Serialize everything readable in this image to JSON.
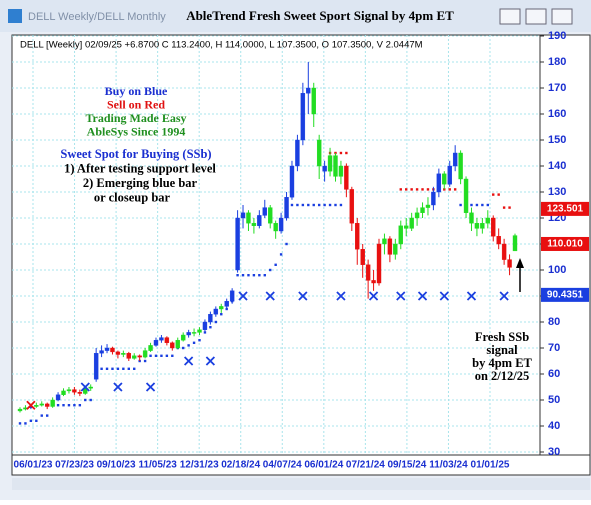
{
  "window": {
    "tab": "DELL Weekly/DELL Monthly",
    "title": "AbleTrend Fresh Sweet Sport Signal by 4pm ET"
  },
  "chart_data": {
    "type": "candlestick",
    "header": "DELL [Weekly] 02/09/25 +6.8700 C 113.2400, H 114.0000, L 107.3500, O 107.3500, V 2.0447M",
    "legend_lines": [
      {
        "text": "Buy on Blue",
        "color": "#1a2fd0"
      },
      {
        "text": "Sell on Red",
        "color": "#e01010"
      },
      {
        "text": "Trading Made Easy",
        "color": "#1f8f1f"
      },
      {
        "text": "AbleSys Since 1994",
        "color": "#1f8f1f"
      }
    ],
    "notes": [
      "Sweet Spot for Buying (SSb)",
      "1) After testing support level",
      "2) Emerging blue bar",
      "or closeup bar"
    ],
    "callout": [
      "Fresh SSb",
      "signal",
      "by 4pm ET",
      "on 2/12/25"
    ],
    "xlabels": [
      "06/01/23",
      "07/23/23",
      "09/10/23",
      "11/05/23",
      "12/31/23",
      "02/18/24",
      "04/07/24",
      "06/01/24",
      "07/21/24",
      "09/15/24",
      "11/03/24",
      "01/01/25"
    ],
    "ylim": [
      30,
      190
    ],
    "yticks": [
      30,
      40,
      50,
      60,
      70,
      80,
      90,
      100,
      110,
      120,
      130,
      140,
      150,
      160,
      170,
      180,
      190
    ],
    "grid": true,
    "palette": {
      "b": "#1a3fe0",
      "g": "#22dd22",
      "r": "#e81010"
    },
    "ohlc": [
      [
        45.8,
        47.2,
        45.2,
        46.5
      ],
      [
        46.5,
        48,
        46,
        47
      ],
      [
        47,
        48.5,
        46.5,
        47.5
      ],
      [
        47.5,
        49,
        47,
        48
      ],
      [
        48,
        49.5,
        47.5,
        48.5
      ],
      [
        48.5,
        49,
        46.5,
        47.5
      ],
      [
        47.5,
        51,
        47,
        50
      ],
      [
        50,
        53,
        49.5,
        52
      ],
      [
        52,
        54.5,
        51.5,
        53.5
      ],
      [
        53.5,
        55,
        52.5,
        54
      ],
      [
        54,
        55,
        52,
        53
      ],
      [
        53,
        54,
        51.5,
        52.5
      ],
      [
        52.5,
        55.5,
        52,
        54.5
      ],
      [
        54.5,
        56,
        53.5,
        55
      ],
      [
        58,
        70,
        57,
        68
      ],
      [
        68,
        71,
        66.5,
        69
      ],
      [
        69,
        71.5,
        68,
        70
      ],
      [
        70,
        70.5,
        67.5,
        68.5
      ],
      [
        68.5,
        69,
        66,
        67.5
      ],
      [
        67.5,
        69,
        66.5,
        68
      ],
      [
        68,
        68.5,
        65,
        66
      ],
      [
        66,
        68,
        65.5,
        67
      ],
      [
        67,
        67.5,
        65,
        66.5
      ],
      [
        66.5,
        70,
        66,
        69
      ],
      [
        69,
        72,
        68.5,
        71
      ],
      [
        71,
        74,
        70.5,
        73
      ],
      [
        73,
        75,
        72,
        74
      ],
      [
        74,
        74.5,
        71,
        72
      ],
      [
        72,
        72.5,
        69,
        70
      ],
      [
        70,
        74,
        69.5,
        73
      ],
      [
        73,
        76,
        72.5,
        75
      ],
      [
        75,
        77,
        74,
        76
      ],
      [
        76,
        77.5,
        74.5,
        76
      ],
      [
        76,
        78,
        75,
        77
      ],
      [
        77,
        81,
        76.5,
        80
      ],
      [
        80,
        84,
        79,
        83
      ],
      [
        83,
        86,
        82,
        85
      ],
      [
        85,
        87,
        83.5,
        86
      ],
      [
        86,
        89,
        85,
        88
      ],
      [
        88,
        93,
        87,
        92
      ],
      [
        100,
        123,
        99,
        120
      ],
      [
        120,
        125,
        116,
        122
      ],
      [
        122,
        123,
        115,
        118
      ],
      [
        118,
        120,
        114,
        117
      ],
      [
        117,
        123,
        116,
        121
      ],
      [
        121,
        127,
        120,
        124
      ],
      [
        124,
        125,
        116,
        118
      ],
      [
        118,
        119,
        112,
        115
      ],
      [
        115,
        122,
        114,
        120
      ],
      [
        120,
        130,
        119,
        128
      ],
      [
        128,
        142,
        127,
        140
      ],
      [
        140,
        152,
        138,
        150
      ],
      [
        150,
        172,
        148,
        168
      ],
      [
        168,
        180,
        160,
        170
      ],
      [
        170,
        172,
        155,
        160
      ],
      [
        150,
        152,
        135,
        140
      ],
      [
        140,
        142,
        134,
        138
      ],
      [
        138,
        147,
        136,
        144
      ],
      [
        144,
        145,
        134,
        136
      ],
      [
        136,
        142,
        133,
        140
      ],
      [
        140,
        141,
        128,
        131
      ],
      [
        131,
        132,
        115,
        118
      ],
      [
        118,
        120,
        102,
        108
      ],
      [
        108,
        110,
        97,
        102
      ],
      [
        102,
        104,
        89,
        96
      ],
      [
        96,
        100,
        92,
        95
      ],
      [
        95,
        112,
        94,
        110
      ],
      [
        110,
        114,
        106,
        112
      ],
      [
        112,
        113,
        103,
        106
      ],
      [
        106,
        112,
        104,
        110
      ],
      [
        110,
        119,
        108,
        117
      ],
      [
        117,
        120,
        113,
        116
      ],
      [
        116,
        122,
        115,
        120
      ],
      [
        120,
        124,
        117,
        122
      ],
      [
        122,
        126,
        120,
        124
      ],
      [
        124,
        128,
        121,
        125
      ],
      [
        125,
        132,
        123,
        130
      ],
      [
        130,
        139,
        128,
        137
      ],
      [
        137,
        138,
        131,
        133
      ],
      [
        133,
        142,
        132,
        140
      ],
      [
        140,
        148,
        138,
        145
      ],
      [
        145,
        146,
        133,
        135
      ],
      [
        135,
        136,
        120,
        122
      ],
      [
        122,
        124,
        115,
        118
      ],
      [
        118,
        120,
        113,
        116
      ],
      [
        116,
        120,
        114,
        118
      ],
      [
        118,
        123,
        116,
        120
      ],
      [
        120,
        121,
        111,
        113
      ],
      [
        113,
        116,
        108,
        110
      ],
      [
        110,
        112,
        102,
        104
      ],
      [
        104,
        106,
        98,
        101
      ],
      [
        107.35,
        114,
        107.35,
        113.24
      ]
    ],
    "bar_colors": [
      "g",
      "g",
      "b",
      "g",
      "g",
      "r",
      "g",
      "b",
      "g",
      "g",
      "r",
      "r",
      "g",
      "g",
      "b",
      "b",
      "b",
      "r",
      "r",
      "g",
      "r",
      "g",
      "r",
      "g",
      "g",
      "b",
      "b",
      "r",
      "r",
      "g",
      "g",
      "b",
      "g",
      "g",
      "b",
      "b",
      "b",
      "g",
      "b",
      "b",
      "b",
      "b",
      "g",
      "g",
      "b",
      "b",
      "g",
      "g",
      "b",
      "b",
      "b",
      "b",
      "b",
      "b",
      "g",
      "g",
      "b",
      "g",
      "g",
      "g",
      "r",
      "r",
      "r",
      "r",
      "r",
      "r",
      "r",
      "g",
      "r",
      "g",
      "g",
      "g",
      "g",
      "g",
      "g",
      "g",
      "b",
      "b",
      "g",
      "b",
      "b",
      "g",
      "g",
      "g",
      "g",
      "g",
      "g",
      "r",
      "r",
      "r",
      "r",
      "g"
    ],
    "support": [
      41,
      41,
      42,
      42,
      44,
      44,
      48,
      48,
      48,
      48,
      48,
      48,
      50,
      50,
      62,
      62,
      62,
      62,
      62,
      62,
      62,
      62,
      65,
      65,
      67,
      67,
      67,
      67,
      67,
      70,
      70,
      71,
      72,
      73,
      76,
      78,
      80,
      83,
      85,
      88,
      98,
      98,
      98,
      98,
      98,
      98,
      100,
      102,
      106,
      110,
      125,
      125,
      125,
      125,
      125,
      125,
      125,
      125,
      125,
      125,
      null,
      null,
      null,
      null,
      null,
      null,
      null,
      null,
      null,
      null,
      null,
      null,
      null,
      null,
      null,
      null,
      null,
      null,
      null,
      null,
      null,
      125,
      125,
      125,
      125,
      125,
      125,
      null,
      null,
      null,
      null,
      null
    ],
    "resistance": [
      null,
      null,
      null,
      null,
      null,
      null,
      null,
      null,
      null,
      null,
      null,
      null,
      null,
      null,
      null,
      null,
      null,
      null,
      null,
      null,
      null,
      null,
      null,
      null,
      null,
      null,
      null,
      null,
      null,
      null,
      null,
      null,
      null,
      null,
      null,
      null,
      null,
      null,
      null,
      null,
      null,
      null,
      null,
      null,
      null,
      null,
      null,
      null,
      null,
      null,
      null,
      null,
      null,
      null,
      null,
      null,
      null,
      145,
      145,
      145,
      145,
      null,
      null,
      null,
      null,
      null,
      null,
      null,
      null,
      null,
      131,
      131,
      131,
      131,
      131,
      131,
      131,
      131,
      131,
      131,
      131,
      null,
      null,
      null,
      null,
      null,
      null,
      129,
      129,
      124,
      124,
      null
    ],
    "ssb_marks": [
      null,
      null,
      48,
      null,
      null,
      null,
      null,
      null,
      null,
      null,
      null,
      null,
      55,
      null,
      null,
      null,
      null,
      null,
      55,
      null,
      null,
      null,
      null,
      null,
      55,
      null,
      null,
      null,
      null,
      null,
      null,
      65,
      null,
      null,
      null,
      65,
      null,
      null,
      null,
      null,
      null,
      90,
      null,
      null,
      null,
      null,
      90,
      null,
      null,
      null,
      null,
      null,
      90,
      null,
      null,
      null,
      null,
      null,
      null,
      90,
      null,
      null,
      null,
      null,
      null,
      90,
      null,
      null,
      null,
      null,
      90,
      null,
      null,
      null,
      90,
      null,
      null,
      null,
      90,
      null,
      null,
      null,
      null,
      90,
      null,
      null,
      null,
      null,
      null,
      90,
      null,
      null
    ],
    "price_tags": [
      {
        "value": 123.501,
        "label": "123.501",
        "color": "#e81010"
      },
      {
        "value": 110.01,
        "label": "110.010",
        "color": "#e81010"
      },
      {
        "value": 90.4351,
        "label": "90.4351",
        "color": "#1a3fe0"
      }
    ]
  }
}
